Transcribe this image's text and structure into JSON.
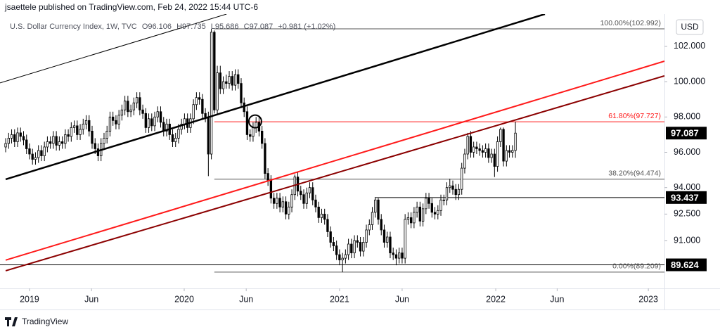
{
  "header": {
    "published": "jsaettele published on TradingView.com, Feb 24, 2022 15:44 UTC-6"
  },
  "footer": {
    "brand": "TradingView"
  },
  "chart_data": {
    "type": "candlestick",
    "title": "U.S. Dollar Currency Index, 1W, TVC",
    "ohlc_letters": [
      "O",
      "H",
      "L",
      "C"
    ],
    "change": "+0.981 (+1.02%)",
    "currency": "USD",
    "up_color": "#ffffff",
    "down_color": "#000000",
    "outline_color": "#000000",
    "xlim": [
      -1.9,
      221
    ],
    "xticks": [
      {
        "value": 8,
        "label": "2019"
      },
      {
        "value": 28.8,
        "label": "Jun"
      },
      {
        "value": 59.9,
        "label": "2020"
      },
      {
        "value": 80.7,
        "label": "Jun"
      },
      {
        "value": 112,
        "label": "2021"
      },
      {
        "value": 133,
        "label": "Jun"
      },
      {
        "value": 164.4,
        "label": "2022"
      },
      {
        "value": 185,
        "label": "Jun"
      },
      {
        "value": 215.6,
        "label": "2023"
      }
    ],
    "ylim": [
      88.29,
      103.83
    ],
    "yticks": [
      {
        "value": 102,
        "label": "102.000"
      },
      {
        "value": 100,
        "label": "100.000"
      },
      {
        "value": 98,
        "label": "98.000"
      },
      {
        "value": 96,
        "label": "96.000"
      },
      {
        "value": 94,
        "label": "94.000"
      },
      {
        "value": 92.5,
        "label": "92.500"
      },
      {
        "value": 91,
        "label": "91.000"
      }
    ],
    "candles": [
      [
        96.3,
        96.8,
        96.0,
        96.5
      ],
      [
        96.5,
        97.1,
        96.2,
        96.8
      ],
      [
        96.8,
        97.3,
        96.5,
        97.0
      ],
      [
        97.0,
        97.3,
        96.3,
        96.6
      ],
      [
        96.6,
        97.4,
        96.3,
        97.1
      ],
      [
        97.1,
        97.4,
        96.6,
        96.9
      ],
      [
        96.9,
        97.2,
        96.4,
        96.7
      ],
      [
        96.7,
        97.0,
        95.9,
        96.2
      ],
      [
        96.2,
        96.5,
        95.6,
        95.9
      ],
      [
        95.9,
        96.2,
        95.3,
        95.6
      ],
      [
        95.6,
        96.0,
        95.3,
        95.7
      ],
      [
        95.7,
        96.4,
        95.4,
        96.1
      ],
      [
        96.1,
        96.4,
        95.5,
        95.8
      ],
      [
        95.8,
        96.6,
        95.5,
        96.3
      ],
      [
        96.3,
        96.9,
        96.0,
        96.6
      ],
      [
        96.6,
        96.9,
        96.2,
        96.5
      ],
      [
        96.5,
        97.2,
        96.2,
        96.9
      ],
      [
        96.9,
        97.2,
        96.1,
        96.4
      ],
      [
        96.4,
        96.9,
        96.1,
        96.6
      ],
      [
        96.6,
        96.9,
        96.2,
        96.5
      ],
      [
        96.5,
        97.3,
        96.2,
        97.0
      ],
      [
        97.0,
        97.3,
        96.6,
        96.9
      ],
      [
        96.9,
        97.7,
        96.6,
        97.4
      ],
      [
        97.4,
        97.8,
        97.1,
        97.5
      ],
      [
        97.5,
        97.8,
        96.7,
        97.0
      ],
      [
        97.0,
        97.6,
        96.7,
        97.3
      ],
      [
        97.3,
        97.9,
        97.0,
        97.6
      ],
      [
        97.6,
        98.1,
        97.3,
        97.8
      ],
      [
        97.8,
        98.1,
        96.9,
        97.2
      ],
      [
        97.2,
        97.5,
        96.2,
        96.5
      ],
      [
        96.5,
        96.8,
        95.9,
        96.2
      ],
      [
        96.2,
        96.5,
        95.5,
        95.8
      ],
      [
        95.8,
        96.8,
        95.5,
        96.5
      ],
      [
        96.5,
        97.1,
        96.2,
        96.8
      ],
      [
        96.8,
        97.5,
        96.5,
        97.2
      ],
      [
        97.2,
        98.3,
        96.9,
        98.0
      ],
      [
        98.0,
        98.3,
        97.5,
        97.8
      ],
      [
        97.8,
        98.1,
        97.3,
        97.6
      ],
      [
        97.6,
        98.4,
        97.3,
        98.1
      ],
      [
        98.1,
        98.7,
        97.8,
        98.4
      ],
      [
        98.4,
        99.2,
        98.1,
        98.9
      ],
      [
        98.9,
        99.2,
        98.0,
        98.3
      ],
      [
        98.3,
        98.7,
        98.0,
        98.4
      ],
      [
        98.4,
        99.1,
        98.1,
        98.8
      ],
      [
        98.8,
        99.4,
        98.5,
        99.1
      ],
      [
        99.1,
        99.4,
        98.1,
        98.4
      ],
      [
        98.4,
        98.7,
        97.9,
        98.2
      ],
      [
        98.2,
        98.5,
        97.1,
        97.4
      ],
      [
        97.4,
        98.2,
        97.1,
        97.9
      ],
      [
        97.9,
        98.2,
        97.2,
        97.5
      ],
      [
        97.5,
        98.3,
        97.2,
        98.0
      ],
      [
        98.0,
        98.6,
        97.7,
        98.3
      ],
      [
        98.3,
        98.6,
        97.4,
        97.7
      ],
      [
        97.7,
        98.0,
        96.9,
        97.2
      ],
      [
        97.2,
        97.9,
        96.9,
        97.6
      ],
      [
        97.6,
        97.9,
        96.7,
        97.0
      ],
      [
        97.0,
        97.3,
        96.3,
        96.6
      ],
      [
        96.6,
        97.1,
        96.3,
        96.8
      ],
      [
        96.8,
        97.6,
        96.5,
        97.3
      ],
      [
        97.3,
        97.9,
        97.0,
        97.6
      ],
      [
        97.6,
        98.2,
        97.3,
        97.9
      ],
      [
        97.9,
        98.2,
        97.1,
        97.4
      ],
      [
        97.4,
        98.2,
        97.1,
        97.9
      ],
      [
        97.9,
        99.0,
        97.6,
        98.7
      ],
      [
        98.7,
        99.4,
        98.4,
        99.1
      ],
      [
        99.1,
        99.4,
        98.7,
        99.0
      ],
      [
        99.0,
        99.3,
        97.9,
        98.2
      ],
      [
        98.2,
        98.5,
        97.7,
        98.0
      ],
      [
        98.0,
        98.3,
        94.65,
        95.9
      ],
      [
        95.9,
        102.992,
        95.6,
        102.8
      ],
      [
        102.8,
        102.9,
        98.2,
        98.4
      ],
      [
        98.4,
        100.9,
        98.1,
        100.5
      ],
      [
        100.5,
        100.9,
        99.3,
        99.6
      ],
      [
        99.6,
        100.3,
        99.3,
        100.0
      ],
      [
        100.0,
        100.4,
        99.6,
        99.9
      ],
      [
        99.9,
        100.6,
        99.6,
        100.3
      ],
      [
        100.3,
        100.6,
        99.5,
        99.8
      ],
      [
        99.8,
        100.7,
        99.5,
        100.4
      ],
      [
        100.4,
        100.7,
        99.6,
        99.9
      ],
      [
        99.9,
        100.2,
        98.5,
        98.8
      ],
      [
        98.8,
        99.1,
        98.0,
        98.3
      ],
      [
        98.3,
        98.6,
        96.7,
        97.0
      ],
      [
        97.0,
        97.3,
        96.6,
        96.9
      ],
      [
        96.9,
        97.7,
        96.6,
        97.4
      ],
      [
        97.4,
        98.0,
        97.1,
        97.7
      ],
      [
        97.7,
        98.0,
        96.9,
        97.2
      ],
      [
        97.2,
        97.5,
        96.2,
        96.5
      ],
      [
        96.5,
        96.8,
        94.5,
        94.8
      ],
      [
        94.8,
        95.1,
        94.1,
        94.4
      ],
      [
        94.4,
        94.7,
        93.1,
        93.4
      ],
      [
        93.4,
        93.7,
        92.8,
        93.1
      ],
      [
        93.1,
        93.7,
        92.8,
        93.4
      ],
      [
        93.4,
        93.7,
        92.6,
        92.9
      ],
      [
        92.9,
        93.5,
        92.6,
        93.2
      ],
      [
        93.2,
        93.5,
        92.2,
        92.5
      ],
      [
        92.5,
        93.2,
        92.2,
        92.9
      ],
      [
        92.9,
        93.9,
        92.6,
        93.6
      ],
      [
        93.6,
        94.74,
        93.3,
        94.6
      ],
      [
        94.6,
        94.9,
        93.5,
        93.8
      ],
      [
        93.8,
        94.1,
        93.3,
        93.6
      ],
      [
        93.6,
        93.9,
        92.8,
        93.1
      ],
      [
        93.1,
        94.0,
        92.8,
        93.7
      ],
      [
        93.7,
        94.3,
        93.4,
        94.0
      ],
      [
        94.0,
        94.3,
        93.0,
        93.3
      ],
      [
        93.3,
        93.6,
        92.6,
        92.9
      ],
      [
        92.9,
        93.2,
        92.0,
        92.3
      ],
      [
        92.3,
        92.8,
        92.0,
        92.5
      ],
      [
        92.5,
        92.8,
        91.9,
        92.2
      ],
      [
        92.2,
        92.5,
        91.2,
        91.5
      ],
      [
        91.5,
        91.8,
        90.6,
        90.9
      ],
      [
        90.9,
        91.2,
        90.4,
        90.7
      ],
      [
        90.7,
        91.0,
        89.9,
        90.2
      ],
      [
        90.2,
        90.5,
        89.6,
        89.9
      ],
      [
        89.9,
        90.3,
        89.209,
        90.0
      ],
      [
        90.0,
        90.5,
        89.7,
        90.2
      ],
      [
        90.2,
        91.1,
        89.9,
        90.8
      ],
      [
        90.8,
        91.1,
        90.0,
        90.3
      ],
      [
        90.3,
        91.3,
        90.0,
        91.0
      ],
      [
        91.0,
        91.3,
        90.6,
        90.9
      ],
      [
        90.9,
        91.2,
        90.1,
        90.4
      ],
      [
        90.4,
        91.2,
        90.1,
        90.9
      ],
      [
        90.9,
        91.9,
        90.6,
        91.6
      ],
      [
        91.6,
        92.2,
        91.3,
        91.9
      ],
      [
        91.9,
        92.9,
        91.6,
        92.6
      ],
      [
        92.6,
        93.437,
        92.3,
        93.3
      ],
      [
        93.3,
        93.4,
        91.9,
        92.2
      ],
      [
        92.2,
        92.5,
        91.3,
        91.6
      ],
      [
        91.6,
        91.9,
        90.6,
        90.9
      ],
      [
        90.9,
        91.5,
        90.6,
        91.2
      ],
      [
        91.2,
        91.5,
        90.0,
        90.3
      ],
      [
        90.3,
        90.6,
        89.9,
        90.2
      ],
      [
        90.2,
        90.5,
        89.6,
        90.0
      ],
      [
        90.0,
        90.6,
        89.7,
        90.3
      ],
      [
        90.3,
        90.6,
        89.7,
        90.0
      ],
      [
        90.0,
        92.5,
        89.7,
        92.2
      ],
      [
        92.2,
        92.6,
        91.9,
        92.3
      ],
      [
        92.3,
        92.6,
        91.7,
        92.0
      ],
      [
        92.0,
        92.9,
        91.7,
        92.6
      ],
      [
        92.6,
        93.2,
        92.3,
        92.9
      ],
      [
        92.9,
        93.2,
        91.8,
        92.1
      ],
      [
        92.1,
        93.1,
        91.8,
        92.8
      ],
      [
        92.8,
        93.7,
        92.5,
        93.4
      ],
      [
        93.4,
        93.7,
        92.8,
        93.1
      ],
      [
        93.1,
        93.4,
        92.3,
        92.6
      ],
      [
        92.6,
        92.9,
        92.2,
        92.5
      ],
      [
        92.5,
        93.0,
        92.2,
        92.7
      ],
      [
        92.7,
        93.6,
        92.4,
        93.3
      ],
      [
        93.3,
        93.6,
        93.0,
        93.3
      ],
      [
        93.3,
        94.3,
        93.0,
        94.0
      ],
      [
        94.0,
        94.5,
        93.7,
        94.1
      ],
      [
        94.1,
        94.4,
        93.6,
        93.9
      ],
      [
        93.9,
        94.2,
        93.3,
        93.6
      ],
      [
        93.6,
        94.2,
        93.3,
        93.9
      ],
      [
        93.9,
        95.4,
        93.6,
        95.1
      ],
      [
        95.1,
        96.2,
        94.8,
        95.9
      ],
      [
        95.9,
        97.1,
        95.6,
        96.9
      ],
      [
        96.9,
        97.2,
        95.7,
        96.0
      ],
      [
        96.0,
        96.6,
        95.7,
        96.3
      ],
      [
        96.3,
        96.6,
        95.9,
        96.2
      ],
      [
        96.2,
        96.5,
        95.8,
        96.1
      ],
      [
        96.1,
        96.4,
        95.7,
        96.0
      ],
      [
        96.0,
        96.5,
        95.7,
        96.2
      ],
      [
        96.2,
        96.5,
        95.4,
        95.7
      ],
      [
        95.7,
        96.2,
        95.4,
        95.9
      ],
      [
        95.9,
        96.2,
        94.6,
        95.2
      ],
      [
        95.2,
        96.9,
        94.9,
        96.6
      ],
      [
        96.6,
        97.4,
        96.3,
        97.3
      ],
      [
        97.3,
        97.4,
        95.2,
        95.5
      ],
      [
        95.5,
        96.4,
        95.2,
        96.1
      ],
      [
        96.1,
        96.4,
        95.7,
        96.0
      ],
      [
        96.0,
        96.4,
        95.7,
        96.106
      ],
      [
        96.106,
        97.735,
        95.686,
        97.087
      ]
    ],
    "trend_lines": [
      {
        "color": "#000000",
        "width": 1,
        "points": [
          [
            -1.9,
            99.93
          ],
          [
            74.1,
            103.83
          ]
        ]
      },
      {
        "color": "#000000",
        "width": 2.5,
        "points": [
          [
            0,
            94.47
          ],
          [
            180.9,
            103.83
          ]
        ]
      },
      {
        "color": "#ff1a1a",
        "width": 2,
        "points": [
          [
            0,
            89.89
          ],
          [
            221,
            101.16
          ]
        ]
      },
      {
        "color": "#8b0000",
        "width": 2,
        "points": [
          [
            0,
            89.29
          ],
          [
            221,
            100.33
          ]
        ]
      }
    ],
    "levels": [
      {
        "value": 102.992,
        "label": "100.00%(102.992)",
        "start": 70,
        "color": "#555555"
      },
      {
        "value": 97.727,
        "label": "61.80%(97.727)",
        "start": 70,
        "color": "#ff1a1a"
      },
      {
        "value": 94.474,
        "label": "38.20%(94.474)",
        "start": 70,
        "color": "#555555"
      },
      {
        "value": 89.209,
        "label": "0.00%(89.209)",
        "start": 70,
        "color": "#555555"
      },
      {
        "value": 93.437,
        "start": 123.8,
        "color": "#000000"
      },
      {
        "value": 89.624,
        "start": -1.9,
        "color": "#000000"
      }
    ],
    "price_labels": [
      {
        "value": 97.087,
        "label": "97.087"
      },
      {
        "value": 93.437,
        "label": "93.437"
      },
      {
        "value": 89.624,
        "label": "89.624"
      }
    ],
    "circle": {
      "x": 83.7,
      "y": 97.75
    }
  }
}
